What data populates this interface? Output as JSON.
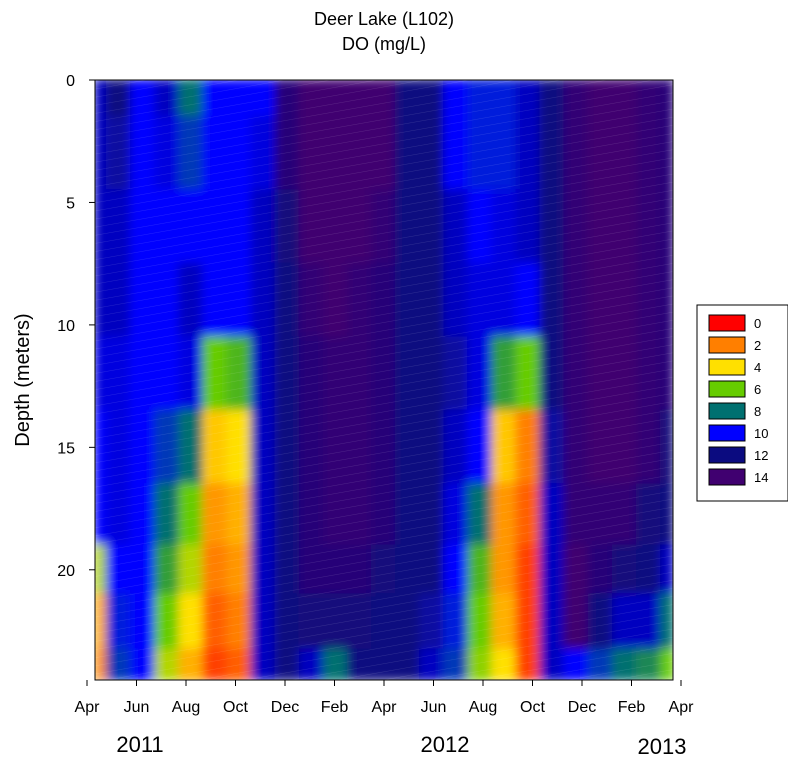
{
  "chart_data": {
    "type": "heatmap",
    "title": "Deer Lake (L102)",
    "subtitle": "DO (mg/L)",
    "ylabel": "Depth (meters)",
    "xlabel": "",
    "y_ticks": [
      0,
      5,
      10,
      15,
      20
    ],
    "ylim": [
      0,
      24.5
    ],
    "y_inverted": true,
    "x_tick_labels": [
      "Apr",
      "Jun",
      "Aug",
      "Oct",
      "Dec",
      "Feb",
      "Apr",
      "Jun",
      "Aug",
      "Oct",
      "Dec",
      "Feb",
      "Apr"
    ],
    "year_labels": [
      "2011",
      "2012",
      "2013"
    ],
    "legend": {
      "placement": "right",
      "entries": [
        {
          "label": "0",
          "color": "#ff0000"
        },
        {
          "label": "2",
          "color": "#ff7f00"
        },
        {
          "label": "4",
          "color": "#ffe000"
        },
        {
          "label": "6",
          "color": "#66cc00"
        },
        {
          "label": "8",
          "color": "#007070"
        },
        {
          "label": "10",
          "color": "#0000ff"
        },
        {
          "label": "12",
          "color": "#0b0b80"
        },
        {
          "label": "14",
          "color": "#400070"
        }
      ]
    },
    "depths": [
      0,
      3,
      6,
      9,
      12,
      15,
      18,
      20,
      22,
      24.5
    ],
    "months": [
      "Apr 2011",
      "May",
      "Jun",
      "Jul",
      "Aug",
      "Sep",
      "Oct",
      "Nov",
      "Dec",
      "Jan",
      "Feb",
      "Mar",
      "Apr 2012",
      "May",
      "Jun",
      "Jul",
      "Aug",
      "Sep",
      "Oct",
      "Nov",
      "Dec",
      "Jan",
      "Feb",
      "Mar",
      "Apr 2013"
    ],
    "values": [
      [
        11,
        12,
        10,
        11,
        8,
        10,
        10,
        10,
        13,
        14,
        14,
        14,
        14,
        12,
        12,
        10,
        9.5,
        9.5,
        11,
        12,
        13.5,
        14,
        14,
        13.5,
        13
      ],
      [
        11,
        11.5,
        10,
        10.5,
        9,
        10,
        10,
        10.5,
        13,
        14,
        14,
        14,
        14,
        12,
        12,
        10,
        9.5,
        9.5,
        11,
        12,
        13.5,
        14,
        14,
        13.5,
        13
      ],
      [
        11,
        11,
        10,
        10,
        10,
        10,
        10,
        11,
        12.5,
        14,
        14,
        14,
        13.5,
        12,
        12,
        11,
        10,
        10.5,
        11,
        12,
        13.5,
        14,
        14,
        13.5,
        13
      ],
      [
        11,
        11,
        10,
        10,
        11,
        10,
        10,
        11,
        12,
        13.5,
        14,
        13.5,
        13,
        12,
        12,
        11,
        10.5,
        10.5,
        10,
        12,
        13.5,
        14,
        14,
        13.5,
        13
      ],
      [
        10.5,
        10.5,
        10,
        10,
        10.5,
        6,
        6.5,
        11,
        12,
        13,
        13.5,
        13.5,
        13,
        12,
        12,
        11.5,
        10.5,
        7,
        6,
        12,
        13.5,
        14,
        14,
        13.5,
        13
      ],
      [
        10,
        10.5,
        10,
        9,
        8,
        3.5,
        4,
        11,
        12,
        13,
        13.5,
        13.5,
        13,
        12,
        12,
        11,
        10,
        3.5,
        2,
        11.5,
        13.5,
        14,
        14,
        13.5,
        12.5
      ],
      [
        10,
        10.5,
        10,
        8,
        6,
        2.5,
        3,
        11,
        12,
        13,
        13.5,
        13.5,
        13,
        12,
        12,
        10.5,
        8,
        2.5,
        1.5,
        11,
        13.5,
        13.5,
        13.5,
        12.5,
        12
      ],
      [
        5,
        10,
        10,
        7,
        5,
        2,
        2.5,
        11,
        12,
        13,
        13,
        13,
        12.5,
        12,
        12,
        10,
        6.5,
        2.5,
        1,
        11,
        14,
        13,
        12.5,
        12,
        11
      ],
      [
        3,
        9.5,
        10,
        6,
        4,
        1.5,
        2,
        11,
        12,
        12.5,
        12.5,
        12.5,
        12,
        12,
        11.5,
        9.5,
        6,
        3,
        1,
        11,
        14,
        12,
        11,
        11,
        8
      ],
      [
        2.5,
        9,
        10,
        5,
        3,
        1,
        1.5,
        11,
        12,
        11,
        8,
        12,
        12,
        12,
        11,
        9,
        5.5,
        4,
        1,
        11,
        10,
        9,
        8,
        7.5,
        6
      ]
    ]
  }
}
